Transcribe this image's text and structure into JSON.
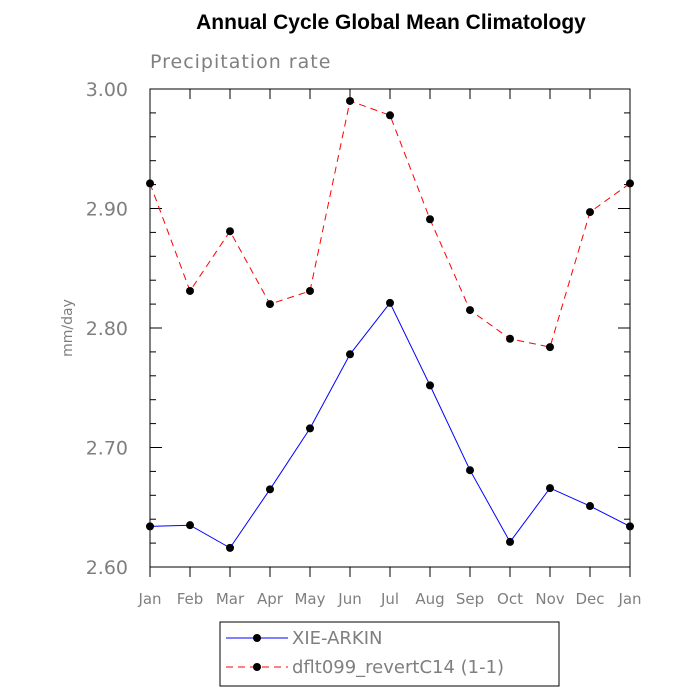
{
  "chart_data": {
    "type": "line",
    "title": "Annual Cycle Global Mean Climatology",
    "subtitle": "Precipitation rate",
    "xlabel": "",
    "ylabel": "mm/day",
    "categories": [
      "Jan",
      "Feb",
      "Mar",
      "Apr",
      "May",
      "Jun",
      "Jul",
      "Aug",
      "Sep",
      "Oct",
      "Nov",
      "Dec",
      "Jan"
    ],
    "ylim": [
      2.6,
      3.0
    ],
    "yticks": [
      2.6,
      2.7,
      2.8,
      2.9,
      3.0
    ],
    "ytick_labels": [
      "2.60",
      "2.70",
      "2.80",
      "2.90",
      "3.00"
    ],
    "grid": false,
    "legend_position": "bottom-center",
    "series": [
      {
        "name": "XIE-ARKIN",
        "color": "#0000ff",
        "dash": "solid",
        "values": [
          2.634,
          2.635,
          2.616,
          2.665,
          2.716,
          2.778,
          2.821,
          2.752,
          2.681,
          2.621,
          2.666,
          2.651,
          2.634
        ]
      },
      {
        "name": "dflt099_revertC14 (1-1)",
        "color": "#ff0000",
        "dash": "dashed",
        "values": [
          2.921,
          2.831,
          2.881,
          2.82,
          2.831,
          2.99,
          2.978,
          2.891,
          2.815,
          2.791,
          2.784,
          2.897,
          2.921
        ]
      }
    ]
  }
}
